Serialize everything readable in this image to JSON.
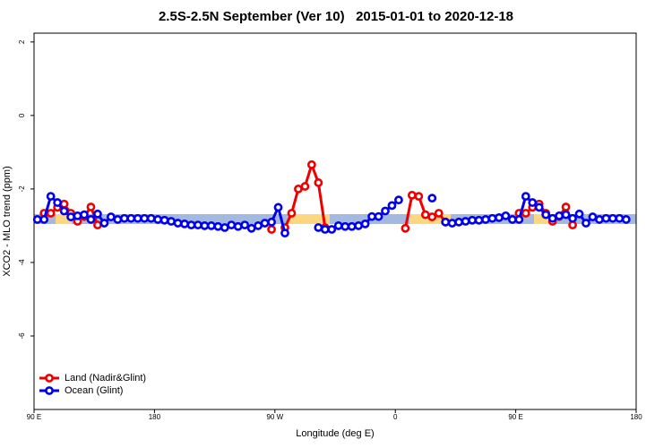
{
  "chart_data": {
    "type": "line",
    "title": "2.5S-2.5N September (Ver 10)   2015-01-01 to 2020-12-18",
    "x_label": "Longitude (deg E)",
    "y_label": "XCO2 - MLO trend (ppm)",
    "xlim": [
      90,
      540
    ],
    "xticks": [
      {
        "value": 90,
        "label": "90 E"
      },
      {
        "value": 180,
        "label": "180"
      },
      {
        "value": 270,
        "label": "90 W"
      },
      {
        "value": 360,
        "label": "0"
      },
      {
        "value": 450,
        "label": "90 E"
      },
      {
        "value": 540,
        "label": "180"
      }
    ],
    "ylim": [
      -8.0,
      2.24
    ],
    "yticks": [
      -6,
      -4,
      -2,
      0,
      2
    ],
    "legend": "bottom-left",
    "x": [
      92.5,
      97.5,
      102.5,
      107.5,
      112.5,
      117.5,
      122.5,
      127.5,
      132.5,
      137.5,
      142.5,
      147.5,
      152.5,
      157.5,
      162.5,
      167.5,
      172.5,
      177.5,
      182.5,
      187.5,
      192.5,
      197.5,
      202.5,
      207.5,
      212.5,
      217.5,
      222.5,
      227.5,
      232.5,
      237.5,
      242.5,
      247.5,
      252.5,
      257.5,
      262.5,
      267.5,
      272.5,
      277.5,
      282.5,
      287.5,
      292.5,
      297.5,
      302.5,
      307.5,
      312.5,
      317.5,
      322.5,
      327.5,
      332.5,
      337.5,
      342.5,
      347.5,
      352.5,
      357.5,
      362.5,
      367.5,
      372.5,
      377.5,
      382.5,
      387.5,
      392.5,
      397.5,
      402.5,
      407.5,
      412.5,
      417.5,
      422.5,
      427.5,
      432.5,
      437.5,
      442.5,
      447.5,
      452.5,
      457.5,
      462.5,
      467.5,
      472.5,
      477.5,
      482.5,
      487.5,
      492.5,
      497.5,
      502.5,
      507.5,
      512.5,
      517.5,
      522.5,
      527.5,
      532.5
    ],
    "series": [
      {
        "name": "Land (Nadir&Glint)",
        "color": "#ee0000",
        "values": [
          null,
          -2.66,
          -2.66,
          -2.5,
          -2.41,
          -2.66,
          -2.88,
          -2.75,
          -2.49,
          -2.98,
          null,
          null,
          null,
          null,
          null,
          null,
          null,
          null,
          null,
          null,
          null,
          null,
          null,
          null,
          null,
          null,
          null,
          null,
          null,
          null,
          null,
          null,
          null,
          null,
          null,
          -3.1,
          null,
          -3.05,
          -2.66,
          -2.0,
          -1.93,
          -1.34,
          -1.83,
          -3.05,
          null,
          null,
          null,
          null,
          null,
          null,
          null,
          null,
          null,
          null,
          null,
          -3.07,
          -2.17,
          -2.2,
          -2.7,
          -2.76,
          -2.66,
          -2.9,
          null,
          null,
          null,
          null,
          null,
          null,
          null,
          null,
          null,
          null,
          -2.66,
          -2.66,
          -2.5,
          -2.41,
          -2.66,
          -2.88,
          -2.75,
          -2.49,
          -2.98,
          null,
          null,
          null,
          null,
          null,
          null,
          null,
          null
        ]
      },
      {
        "name": "Ocean (Glint)",
        "color": "#0000ee",
        "values": [
          -2.83,
          -2.83,
          -2.2,
          -2.37,
          -2.6,
          -2.76,
          -2.73,
          -2.7,
          -2.83,
          -2.68,
          -2.93,
          -2.76,
          -2.83,
          -2.8,
          -2.8,
          -2.8,
          -2.8,
          -2.8,
          -2.83,
          -2.85,
          -2.88,
          -2.93,
          -2.95,
          -2.98,
          -2.98,
          -3.0,
          -3.0,
          -3.02,
          -3.05,
          -2.98,
          -3.02,
          -2.98,
          -3.07,
          -3.0,
          -2.93,
          -2.9,
          -2.5,
          -3.2,
          null,
          null,
          null,
          null,
          -3.05,
          -3.1,
          -3.1,
          -3.0,
          -3.02,
          -3.02,
          -3.0,
          -2.95,
          -2.75,
          -2.75,
          -2.6,
          -2.45,
          -2.3,
          null,
          null,
          null,
          null,
          -2.25,
          null,
          -2.9,
          -2.93,
          -2.9,
          -2.88,
          -2.85,
          -2.85,
          -2.83,
          -2.8,
          -2.78,
          -2.73,
          -2.83,
          -2.83,
          -2.2,
          -2.37,
          -2.5,
          -2.7,
          -2.8,
          -2.73,
          -2.7,
          -2.8,
          -2.68,
          -2.93,
          -2.76,
          -2.83,
          -2.8,
          -2.8,
          -2.8,
          -2.83
        ]
      }
    ]
  }
}
